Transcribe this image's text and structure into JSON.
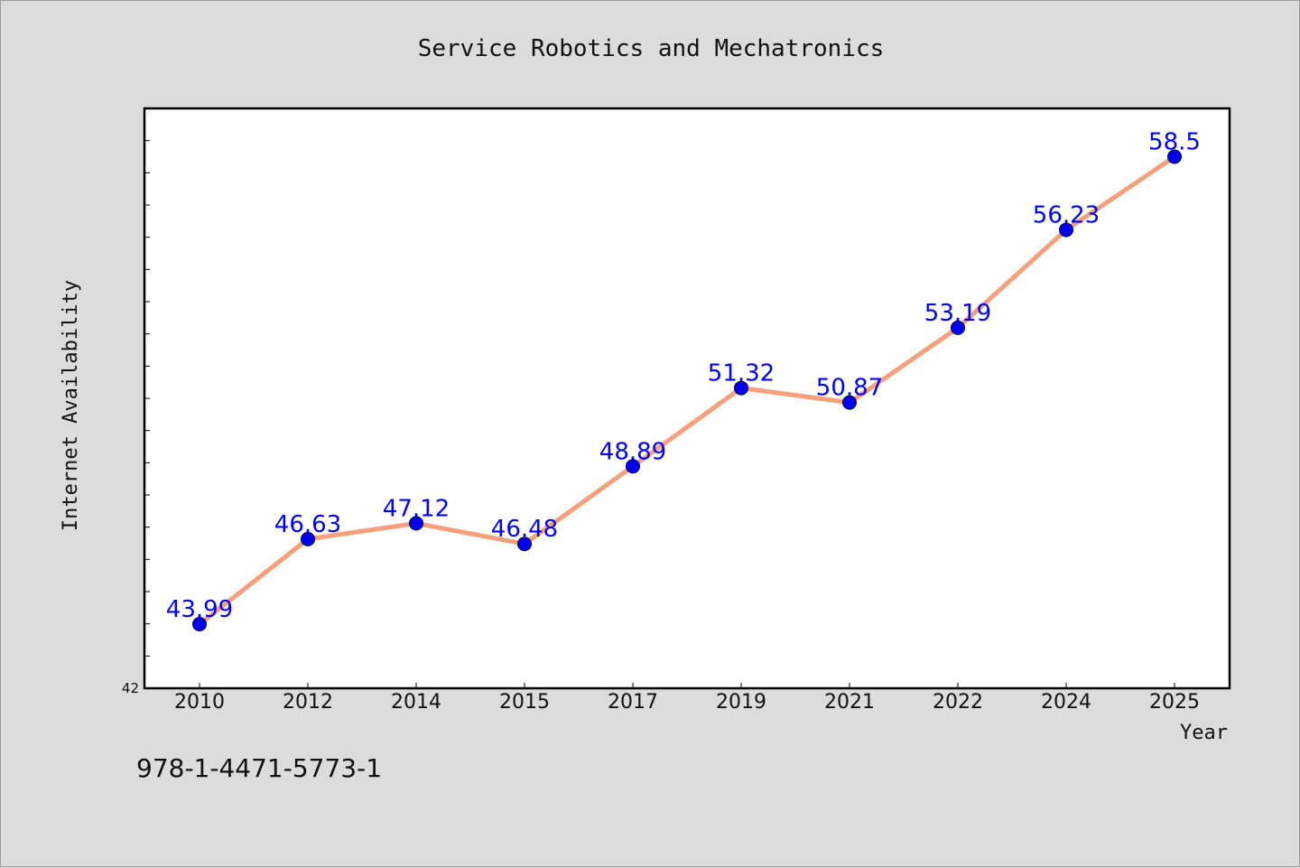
{
  "chart_data": {
    "type": "line",
    "title": "Service Robotics and Mechatronics",
    "xlabel": "Year",
    "ylabel": "Internet Availability",
    "categories": [
      "2010",
      "2012",
      "2014",
      "2015",
      "2017",
      "2019",
      "2021",
      "2022",
      "2024",
      "2025"
    ],
    "series": [
      {
        "values": [
          43.99,
          46.63,
          47.12,
          46.48,
          48.89,
          51.32,
          50.87,
          53.19,
          56.23,
          58.5
        ],
        "labels": [
          "43.99",
          "46.63",
          "47.12",
          "46.48",
          "48.89",
          "51.32",
          "50.87",
          "53.19",
          "56.23",
          "58.5"
        ]
      }
    ],
    "ylim": [
      42,
      60
    ],
    "y_min_label": "42",
    "grid": false,
    "legend": "none"
  },
  "footer": {
    "isbn": "978-1-4471-5773-1"
  },
  "colors": {
    "background": "#dcdcdc",
    "plot_background": "#ffffff",
    "line": "#f5a07a",
    "marker": "#0000ee",
    "data_label": "#0000ff"
  }
}
